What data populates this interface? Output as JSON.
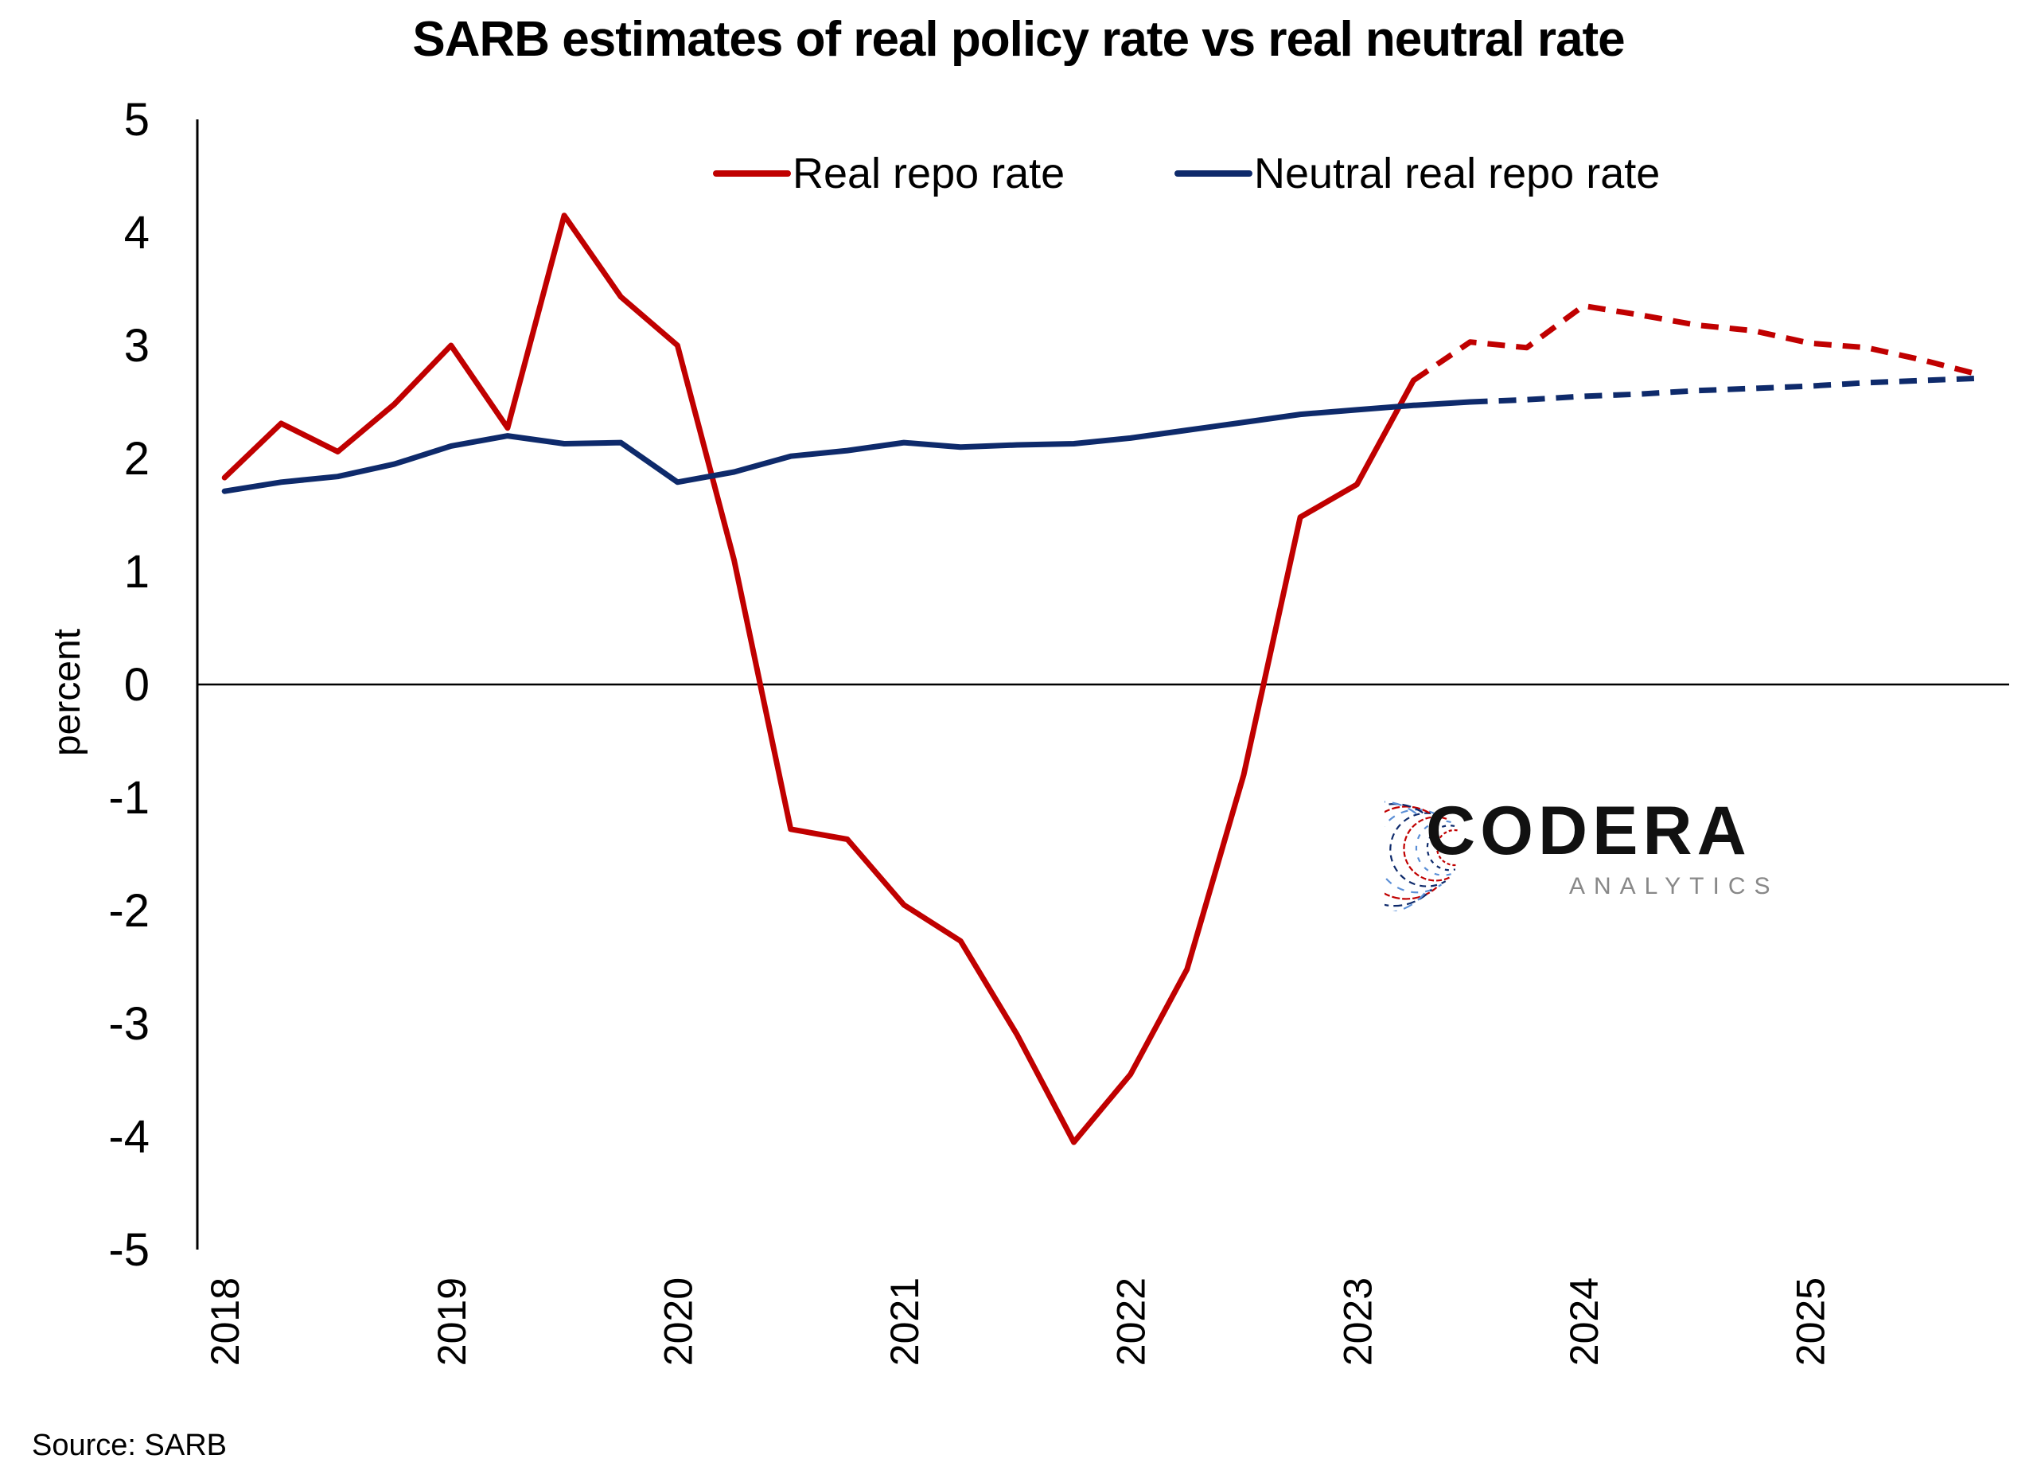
{
  "chart_data": {
    "type": "line",
    "title": "SARB estimates of real policy rate vs real neutral rate",
    "ylabel": "percent",
    "xlabel": "",
    "ylim": [
      -5,
      5
    ],
    "yticks": [
      5,
      4,
      3,
      2,
      1,
      0,
      -1,
      -2,
      -3,
      -4,
      -5
    ],
    "xlim": [
      2017.88,
      2025.88
    ],
    "xticks": [
      2018,
      2019,
      2020,
      2021,
      2022,
      2023,
      2024,
      2025
    ],
    "grid": false,
    "legend_position": "top-right",
    "source": "Source: SARB",
    "series": [
      {
        "name": "Real repo rate",
        "color": "#c00000",
        "x": [
          2018.0,
          2018.25,
          2018.5,
          2018.75,
          2019.0,
          2019.25,
          2019.5,
          2019.75,
          2020.0,
          2020.25,
          2020.5,
          2020.75,
          2021.0,
          2021.25,
          2021.5,
          2021.75,
          2022.0,
          2022.25,
          2022.5,
          2022.75,
          2023.0,
          2023.25,
          2023.5,
          2023.75,
          2024.0,
          2024.25,
          2024.5,
          2024.75,
          2025.0,
          2025.25,
          2025.5,
          2025.75
        ],
        "values": [
          1.83,
          2.31,
          2.06,
          2.48,
          3.0,
          2.27,
          4.15,
          3.43,
          3.0,
          1.1,
          -1.28,
          -1.37,
          -1.95,
          -2.27,
          -3.1,
          -4.05,
          -3.45,
          -2.52,
          -0.8,
          1.48,
          1.77,
          2.69,
          3.03,
          2.98,
          3.35,
          3.27,
          3.18,
          3.13,
          3.02,
          2.98,
          2.87,
          2.74
        ],
        "projection_from_x": 2023.25
      },
      {
        "name": "Neutral real repo rate",
        "color": "#0e2a6b",
        "x": [
          2018.0,
          2018.25,
          2018.5,
          2018.75,
          2019.0,
          2019.25,
          2019.5,
          2019.75,
          2020.0,
          2020.25,
          2020.5,
          2020.75,
          2021.0,
          2021.25,
          2021.5,
          2021.75,
          2022.0,
          2022.25,
          2022.5,
          2022.75,
          2023.0,
          2023.25,
          2023.5,
          2023.75,
          2024.0,
          2024.25,
          2024.5,
          2024.75,
          2025.0,
          2025.25,
          2025.5,
          2025.75
        ],
        "values": [
          1.71,
          1.79,
          1.84,
          1.95,
          2.11,
          2.2,
          2.13,
          2.14,
          1.79,
          1.88,
          2.02,
          2.07,
          2.14,
          2.1,
          2.12,
          2.13,
          2.18,
          2.25,
          2.32,
          2.39,
          2.43,
          2.47,
          2.5,
          2.52,
          2.55,
          2.57,
          2.6,
          2.62,
          2.64,
          2.67,
          2.69,
          2.71
        ],
        "projection_from_x": 2023.5
      }
    ]
  },
  "logo": {
    "name": "CODERA",
    "tagline": "ANALYTICS",
    "colors": [
      "#c00000",
      "#0e2a6b",
      "#5b8fd6"
    ]
  }
}
